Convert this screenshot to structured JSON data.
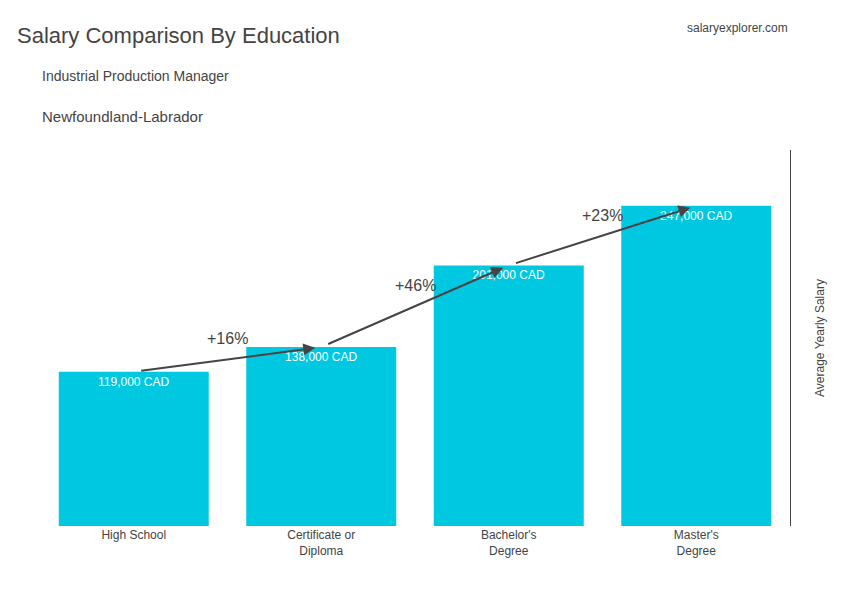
{
  "chart_data": {
    "type": "bar",
    "title": "Salary Comparison By Education",
    "subtitle": [
      "Industrial Production Manager",
      "Newfoundland-Labrador"
    ],
    "ylabel": "Average Yearly Salary",
    "categories": [
      "High School",
      "Certificate or\nDiploma",
      "Bachelor's\nDegree",
      "Master's\nDegree"
    ],
    "values": [
      119000,
      138000,
      201000,
      247000
    ],
    "value_labels": [
      "119,000 CAD",
      "138,000 CAD",
      "201,000 CAD",
      "247,000 CAD"
    ],
    "data_labels": true,
    "color": "#00c8e0",
    "ylim": [
      0,
      290000
    ],
    "tick_labels": "x",
    "grid": false,
    "annotations": [
      {
        "text": "+16%",
        "from": "High School",
        "to": "Certificate or\nDiploma"
      },
      {
        "text": "+46%",
        "from": "Certificate or\nDiploma",
        "to": "Bachelor's\nDegree"
      },
      {
        "text": "+23%",
        "from": "Bachelor's\nDegree",
        "to": "Master's\nDegree"
      }
    ],
    "source": "salaryexplorer.com"
  }
}
